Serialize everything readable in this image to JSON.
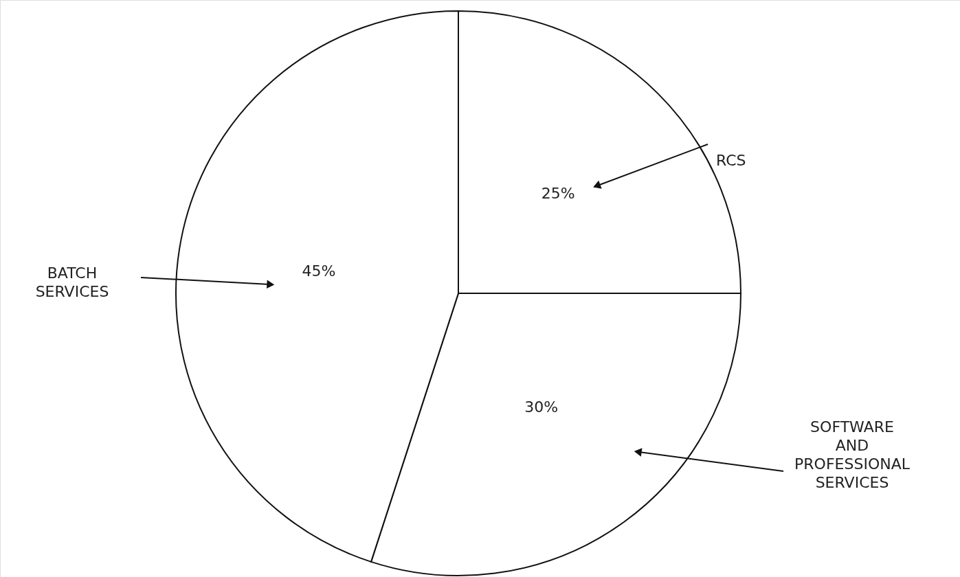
{
  "chart_data": {
    "type": "pie",
    "categories": [
      "RCS",
      "SOFTWARE AND PROFESSIONAL SERVICES",
      "BATCH SERVICES"
    ],
    "values": [
      25,
      30,
      45
    ],
    "value_labels": [
      "25%",
      "30%",
      "45%"
    ],
    "colors": [
      "#ffffff",
      "#ffffff",
      "#ffffff"
    ]
  }
}
